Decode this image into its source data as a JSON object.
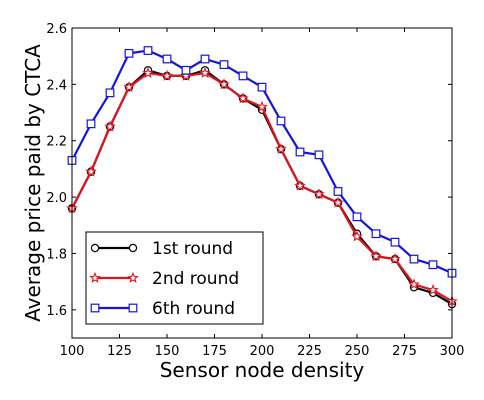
{
  "chart_data": {
    "type": "line",
    "title": "",
    "xlabel": "Sensor node density",
    "ylabel": "Average price paid by CTCA",
    "xlim": [
      100,
      300
    ],
    "ylim": [
      1.5,
      2.6
    ],
    "xticks": [
      "100",
      "125",
      "150",
      "175",
      "200",
      "225",
      "250",
      "275",
      "300"
    ],
    "yticks": [
      "1.6",
      "1.8",
      "2.0",
      "2.2",
      "2.4",
      "2.6"
    ],
    "x": [
      100,
      110,
      120,
      130,
      140,
      150,
      160,
      170,
      180,
      190,
      200,
      210,
      220,
      230,
      240,
      250,
      260,
      270,
      280,
      290,
      300
    ],
    "legend_position": "lower-left",
    "series": [
      {
        "name": "1st round",
        "color": "#000000",
        "marker": "circle",
        "values": [
          1.96,
          2.09,
          2.25,
          2.39,
          2.45,
          2.43,
          2.43,
          2.45,
          2.4,
          2.35,
          2.31,
          2.17,
          2.04,
          2.01,
          1.98,
          1.87,
          1.79,
          1.78,
          1.68,
          1.66,
          1.62
        ]
      },
      {
        "name": "2nd round",
        "color": "#e0141e",
        "marker": "star",
        "values": [
          1.96,
          2.09,
          2.25,
          2.39,
          2.44,
          2.43,
          2.43,
          2.44,
          2.4,
          2.35,
          2.32,
          2.17,
          2.04,
          2.01,
          1.98,
          1.86,
          1.79,
          1.78,
          1.69,
          1.67,
          1.63
        ]
      },
      {
        "name": "6th round",
        "color": "#1414e0",
        "marker": "square",
        "values": [
          2.13,
          2.26,
          2.37,
          2.51,
          2.52,
          2.49,
          2.45,
          2.49,
          2.47,
          2.43,
          2.39,
          2.27,
          2.16,
          2.15,
          2.02,
          1.93,
          1.87,
          1.84,
          1.78,
          1.76,
          1.73
        ]
      }
    ]
  }
}
